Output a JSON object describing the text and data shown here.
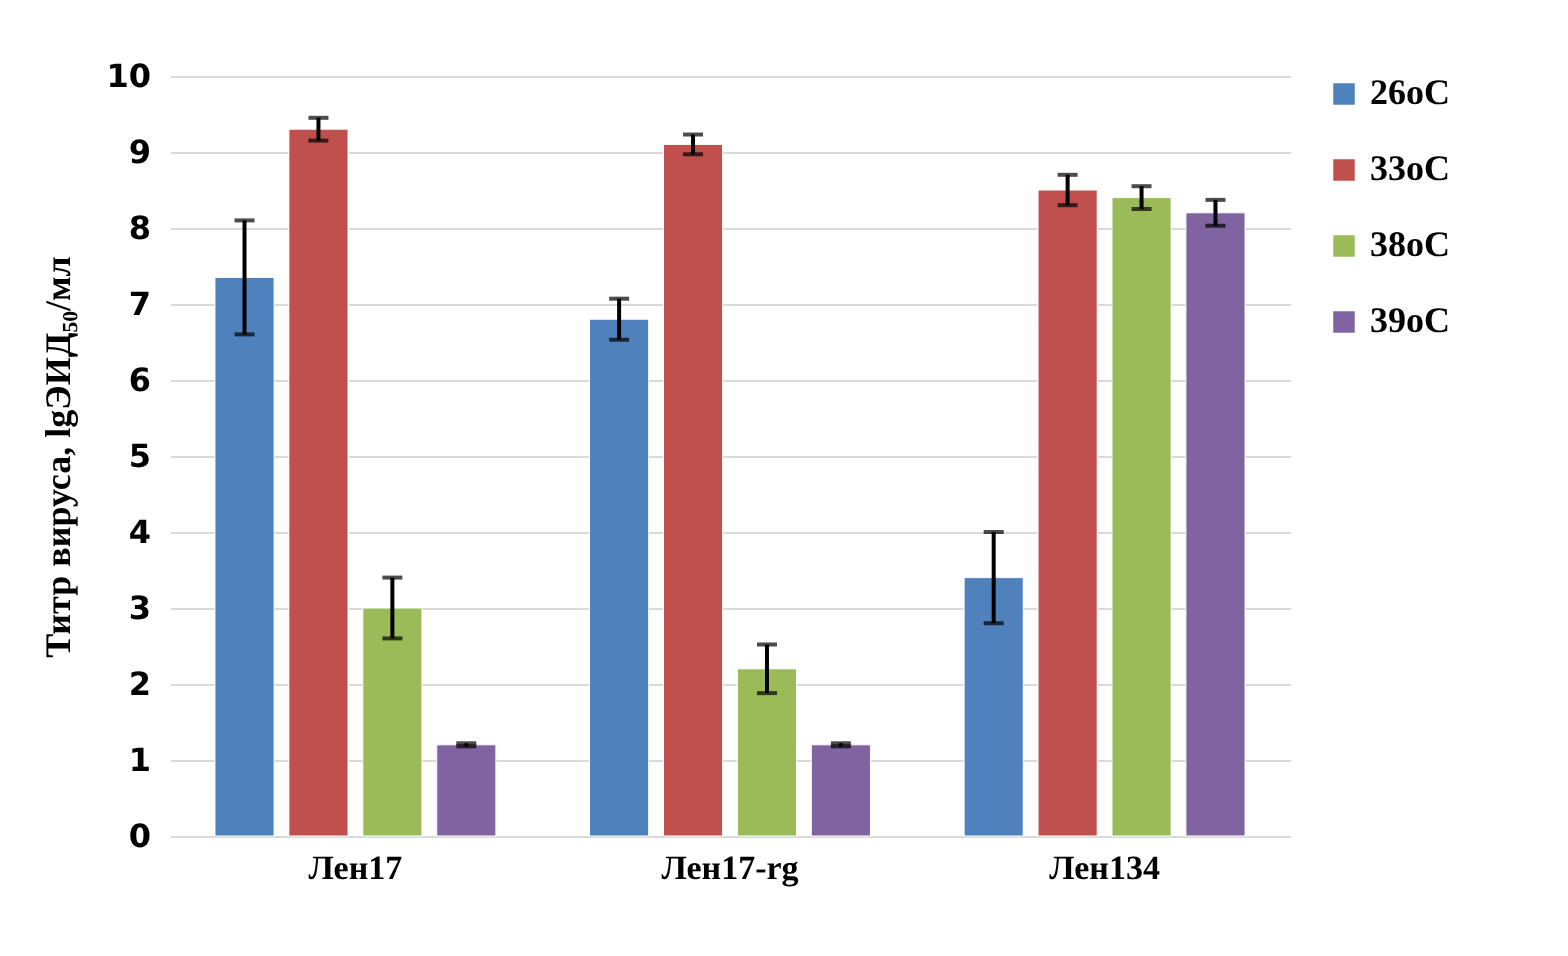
{
  "chart_data": {
    "type": "bar",
    "ylabel": "Титр вируса, lgЭИД₅₀/мл",
    "categories": [
      "Лен17",
      "Лен17-rg",
      "Лен134"
    ],
    "series": [
      {
        "name": "26oC",
        "color": "#4f81bd",
        "values": [
          7.35,
          6.8,
          3.4
        ],
        "errors": [
          0.75,
          0.27,
          0.6
        ]
      },
      {
        "name": "33oC",
        "color": "#c0504d",
        "values": [
          9.3,
          9.1,
          8.5
        ],
        "errors": [
          0.15,
          0.13,
          0.2
        ]
      },
      {
        "name": "38oC",
        "color": "#9bbb59",
        "values": [
          3.0,
          2.2,
          8.4
        ],
        "errors": [
          0.4,
          0.32,
          0.15
        ]
      },
      {
        "name": "39oC",
        "color": "#8064a2",
        "values": [
          1.2,
          1.2,
          8.2
        ],
        "errors": [
          0.02,
          0.02,
          0.17
        ]
      }
    ],
    "ylim": [
      0,
      10
    ],
    "yticks": [
      0,
      1,
      2,
      3,
      4,
      5,
      6,
      7,
      8,
      9,
      10
    ],
    "grid": "y",
    "legend": "right"
  }
}
